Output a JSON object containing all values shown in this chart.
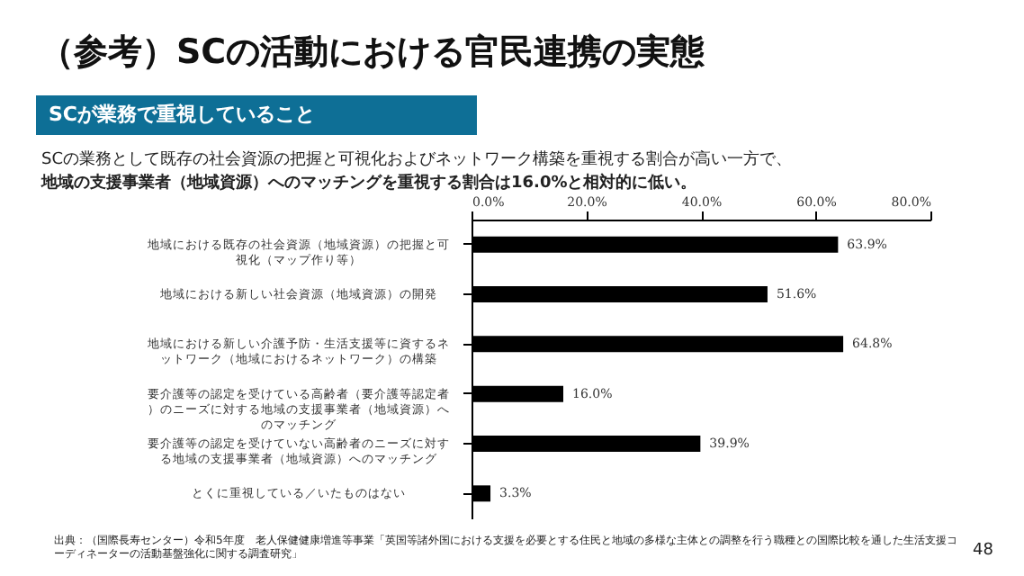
{
  "chart_data": {
    "type": "bar",
    "orientation": "horizontal",
    "title": "（参考）SCの活動における官民連携の実態",
    "subtitle": "SCが業務で重視していること",
    "annotations": [
      "SCの業務として既存の社会資源の把握と可視化およびネットワーク構築を重視する割合が高い一方で、",
      "地域の支援事業者（地域資源）へのマッチングを重視する割合は16.0%と相対的に低い。",
      "出典：（国際長寿センター）令和5年度　老人保健健康増進等事業「英国等諸外国における支援を必要とする住民と地域の多様な主体との調整を行う職種との国際比較を通した生活支援コーディネーターの活動基盤強化に関する調査研究」",
      "48"
    ],
    "categories": [
      "地域における既存の社会資源（地域資源）の把握と可視化（マップ作り等）",
      "地域における新しい社会資源（地域資源）の開発",
      "地域における新しい介護予防・生活支援等に資するネットワーク（地域におけるネットワーク）の構築",
      "要介護等の認定を受けている高齢者（要介護等認定者）のニーズに対する地域の支援事業者（地域資源）へのマッチング",
      "要介護等の認定を受けていない高齢者のニーズに対する地域の支援事業者（地域資源）へのマッチング",
      "とくに重視している／いたものはない"
    ],
    "values": [
      63.9,
      51.6,
      64.8,
      16.0,
      39.9,
      3.3
    ],
    "value_labels": [
      "63.9%",
      "51.6%",
      "64.8%",
      "16.0%",
      "39.9%",
      "3.3%"
    ],
    "color": "#000000",
    "xlim": [
      0,
      80
    ],
    "xticks": [
      {
        "value": 0,
        "label": "0.0%"
      },
      {
        "value": 20,
        "label": "20.0%"
      },
      {
        "value": 40,
        "label": "40.0%"
      },
      {
        "value": 60,
        "label": "60.0%"
      },
      {
        "value": 80,
        "label": "80.0%"
      }
    ],
    "grid": false
  }
}
